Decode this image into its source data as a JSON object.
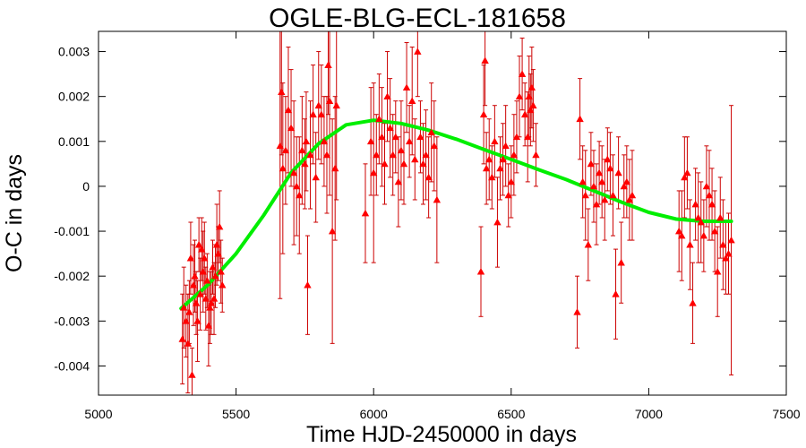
{
  "chart_data": {
    "type": "scatter",
    "title": "OGLE-BLG-ECL-181658",
    "xlabel": "Time HJD-2450000 in days",
    "ylabel": "O-C in days",
    "xlim": [
      5000,
      7500
    ],
    "ylim": [
      -0.00465,
      0.00345
    ],
    "x_ticks": [
      5000,
      5500,
      6000,
      6500,
      7000,
      7500
    ],
    "x_tick_labels": [
      "5000",
      "5500",
      "6000",
      "6500",
      "7000",
      "7500"
    ],
    "y_ticks": [
      0.003,
      0.002,
      0.001,
      0,
      -0.001,
      -0.002,
      -0.003,
      -0.004
    ],
    "y_tick_labels": [
      "0.003",
      "0.002",
      "0.001",
      "0",
      "-0.001",
      "-0.002",
      "-0.003",
      "-0.004"
    ],
    "grid": false,
    "legend": "none",
    "colors": {
      "points": "#ff0000",
      "errorbars": "#cc0000",
      "fit": "#00ee00",
      "frame": "#000000"
    },
    "series": [
      {
        "type": "scatter_errorbars",
        "x": [
          5305,
          5310,
          5318,
          5325,
          5330,
          5335,
          5340,
          5345,
          5350,
          5355,
          5360,
          5365,
          5370,
          5375,
          5380,
          5385,
          5390,
          5395,
          5400,
          5405,
          5410,
          5415,
          5420,
          5425,
          5430,
          5435,
          5440,
          5445,
          5450,
          5660,
          5665,
          5670,
          5680,
          5690,
          5700,
          5710,
          5720,
          5730,
          5740,
          5750,
          5755,
          5760,
          5770,
          5780,
          5790,
          5800,
          5810,
          5820,
          5830,
          5835,
          5840,
          5850,
          5860,
          5865,
          5970,
          5990,
          6000,
          6010,
          6020,
          6030,
          6040,
          6050,
          6060,
          6070,
          6080,
          6090,
          6100,
          6110,
          6120,
          6130,
          6140,
          6150,
          6160,
          6170,
          6180,
          6190,
          6200,
          6210,
          6220,
          6230,
          6390,
          6400,
          6405,
          6410,
          6420,
          6430,
          6440,
          6450,
          6460,
          6470,
          6480,
          6490,
          6500,
          6510,
          6520,
          6530,
          6540,
          6550,
          6560,
          6565,
          6570,
          6575,
          6580,
          6590,
          6740,
          6750,
          6760,
          6770,
          6780,
          6790,
          6800,
          6810,
          6820,
          6830,
          6840,
          6850,
          6860,
          6870,
          6880,
          6890,
          6900,
          6910,
          6920,
          6930,
          6940,
          7110,
          7120,
          7130,
          7140,
          7150,
          7160,
          7170,
          7180,
          7190,
          7200,
          7210,
          7220,
          7230,
          7240,
          7250,
          7260,
          7270,
          7280,
          7290,
          7300
        ],
        "y": [
          -0.0034,
          -0.0027,
          -0.003,
          -0.0035,
          -0.0028,
          -0.0016,
          -0.0042,
          -0.0022,
          -0.002,
          -0.0026,
          -0.003,
          -0.0013,
          -0.0024,
          -0.0014,
          -0.0019,
          -0.0016,
          -0.0025,
          -0.0021,
          -0.0031,
          -0.0027,
          -0.0026,
          -0.0018,
          -0.0025,
          -0.002,
          -0.0013,
          -0.0015,
          -0.0009,
          -0.0019,
          -0.0022,
          0.0009,
          0.0021,
          0.0004,
          0.0008,
          0.0017,
          0.0013,
          0.0003,
          0.0,
          -0.0002,
          0.0008,
          0.0005,
          0.001,
          -0.0022,
          0.0007,
          0.0016,
          0.0002,
          0.0018,
          0.0016,
          0.001,
          0.0007,
          0.0027,
          0.0019,
          -0.001,
          0.0004,
          0.0018,
          -0.0006,
          0.001,
          0.0003,
          0.0007,
          0.0015,
          0.0011,
          0.0005,
          0.002,
          0.0013,
          0.0007,
          0.0011,
          0.0001,
          0.0008,
          0.0005,
          0.0022,
          0.001,
          0.0019,
          0.0006,
          0.003,
          0.0011,
          0.0005,
          0.0007,
          0.0002,
          0.0012,
          0.0009,
          -0.0003,
          -0.0019,
          0.0016,
          0.0028,
          0.0004,
          0.0006,
          0.0002,
          0.001,
          -0.0008,
          0.0004,
          0.0006,
          0.0009,
          -0.0002,
          0.0001,
          0.0007,
          0.0011,
          0.002,
          0.0025,
          0.0016,
          0.0011,
          0.002,
          0.0017,
          0.0022,
          0.0018,
          0.0007,
          -0.0028,
          0.0015,
          0.0001,
          -0.0002,
          -0.0013,
          0.0005,
          0.0,
          -0.0004,
          0.0003,
          0.0001,
          -0.0003,
          0.0006,
          0.0004,
          -0.0002,
          -0.0024,
          0.0003,
          -0.0017,
          0.0,
          0.0001,
          -0.0003,
          -0.0002,
          -0.001,
          -0.0011,
          0.0002,
          0.0003,
          -0.0013,
          -0.0026,
          -0.0004,
          -0.0007,
          -0.0008,
          -0.0011,
          0.0,
          -0.0002,
          -0.0004,
          -0.001,
          -0.0019,
          -0.0007,
          -0.0013,
          -0.0016,
          -0.0015,
          -0.0012
        ],
        "err": [
          0.001,
          0.0009,
          0.0008,
          0.0011,
          0.0007,
          0.0008,
          0.0006,
          0.0009,
          0.0008,
          0.0007,
          0.0009,
          0.0006,
          0.0008,
          0.0007,
          0.0009,
          0.0008,
          0.0007,
          0.0006,
          0.0009,
          0.0008,
          0.0007,
          0.0006,
          0.0008,
          0.0007,
          0.0009,
          0.0006,
          0.0008,
          0.0007,
          0.0006,
          0.0034,
          0.0014,
          0.0019,
          0.0012,
          0.0014,
          0.0013,
          0.0016,
          0.0011,
          0.0013,
          0.0012,
          0.001,
          0.0011,
          0.0011,
          0.0012,
          0.0011,
          0.001,
          0.0012,
          0.0011,
          0.001,
          0.0013,
          0.0011,
          0.0021,
          0.0025,
          0.0016,
          0.0021,
          0.0011,
          0.0012,
          0.002,
          0.0009,
          0.001,
          0.0011,
          0.0009,
          0.001,
          0.0011,
          0.0009,
          0.0008,
          0.001,
          0.0011,
          0.0009,
          0.001,
          0.0008,
          0.0012,
          0.0009,
          0.001,
          0.0008,
          0.0009,
          0.001,
          0.0009,
          0.0011,
          0.001,
          0.0014,
          0.001,
          0.0011,
          0.001,
          0.0008,
          0.0009,
          0.0007,
          0.0008,
          0.001,
          0.0007,
          0.0008,
          0.0009,
          0.0007,
          0.0008,
          0.0009,
          0.0008,
          0.0009,
          0.0008,
          0.0007,
          0.001,
          0.0009,
          0.0008,
          0.0009,
          0.0008,
          0.0007,
          0.0008,
          0.0009,
          0.0008,
          0.001,
          0.0008,
          0.0007,
          0.0008,
          0.0009,
          0.0007,
          0.0008,
          0.0009,
          0.0007,
          0.0008,
          0.0009,
          0.001,
          0.0008,
          0.0009,
          0.0007,
          0.0008,
          0.0009,
          0.001,
          0.0009,
          0.001,
          0.0009,
          0.0008,
          0.001,
          0.0009,
          0.0008,
          0.001,
          0.0009,
          0.0008,
          0.0009,
          0.001,
          0.0008,
          0.0009,
          0.001,
          0.0009,
          0.001,
          0.0008,
          0.0009,
          0.003
        ]
      },
      {
        "type": "fit_line",
        "x": [
          5300,
          5400,
          5500,
          5600,
          5700,
          5800,
          5900,
          6000,
          6100,
          6200,
          6300,
          6400,
          6500,
          6600,
          6700,
          6800,
          6900,
          7000,
          7100,
          7200,
          7300
        ],
        "y": [
          -0.00272,
          -0.00218,
          -0.0015,
          -0.00065,
          0.0003,
          0.00095,
          0.00137,
          0.00147,
          0.0014,
          0.00125,
          0.00105,
          0.00082,
          0.0006,
          0.00037,
          0.00015,
          -0.0001,
          -0.00035,
          -0.00058,
          -0.00073,
          -0.00078,
          -0.00078
        ]
      }
    ]
  }
}
